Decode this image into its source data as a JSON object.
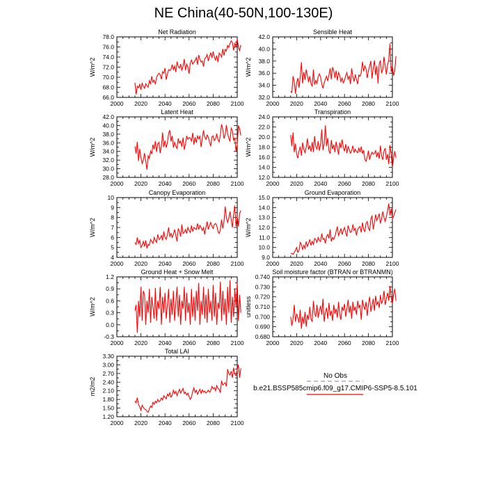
{
  "figure": {
    "title": "NE China(40-50N,100-130E)",
    "line_color": "#ff0000",
    "obs_color": "#9999cc"
  },
  "legend": {
    "obs_label": "No Obs",
    "model_label": "b.e21.BSSP585cmip6.f09_g17.CMIP6-SSP5-8.5.101"
  },
  "chart_data": [
    {
      "type": "line",
      "title": "Net Radiation",
      "ylabel": "W/m^2",
      "xlim": [
        2000,
        2100
      ],
      "ylim": [
        66.0,
        78.0
      ],
      "xticks": [
        2000,
        2020,
        2040,
        2060,
        2080,
        2100
      ],
      "yticks": [
        "66.0",
        "68.0",
        "70.0",
        "72.0",
        "74.0",
        "76.0",
        "78.0"
      ],
      "x_start": 2015,
      "values": [
        68.9,
        66.6,
        68.2,
        67.9,
        68.6,
        67.5,
        68.8,
        68.2,
        67.8,
        68.7,
        68.3,
        68.0,
        69.3,
        68.6,
        70.2,
        69.0,
        69.4,
        68.6,
        70.0,
        70.5,
        70.8,
        70.5,
        69.6,
        71.1,
        70.8,
        71.8,
        69.5,
        70.6,
        71.5,
        71.3,
        71.6,
        72.5,
        71.5,
        72.2,
        71.0,
        73.1,
        72.1,
        71.8,
        72.6,
        71.3,
        72.2,
        73.6,
        71.4,
        72.6,
        72.0,
        70.7,
        72.8,
        73.4,
        72.6,
        72.9,
        73.3,
        73.9,
        72.5,
        74.4,
        73.6,
        73.0,
        73.2,
        72.1,
        73.7,
        73.9,
        74.5,
        73.2,
        74.1,
        74.9,
        73.8,
        75.1,
        74.0,
        73.4,
        74.3,
        73.0,
        74.8,
        74.5,
        74.0,
        75.6,
        74.3,
        75.5,
        75.2,
        76.3,
        75.9,
        76.7,
        77.2,
        76.9,
        75.3,
        76.8,
        76.0,
        77.6,
        75.9,
        75.3,
        76.4
      ]
    },
    {
      "type": "line",
      "title": "Sensible Heat",
      "ylabel": "W/m^2",
      "xlim": [
        2000,
        2100
      ],
      "ylim": [
        32.0,
        42.0
      ],
      "xticks": [
        2000,
        2020,
        2040,
        2060,
        2080,
        2100
      ],
      "yticks": [
        "32.0",
        "34.0",
        "36.0",
        "38.0",
        "40.0",
        "42.0"
      ],
      "x_start": 2015,
      "values": [
        33.0,
        32.8,
        35.5,
        34.6,
        32.6,
        34.4,
        35.2,
        33.6,
        35.4,
        37.8,
        34.3,
        36.2,
        34.9,
        36.6,
        35.6,
        34.5,
        35.5,
        34.3,
        33.8,
        36.6,
        34.1,
        34.8,
        34.3,
        35.4,
        35.9,
        35.4,
        34.2,
        33.5,
        34.4,
        35.0,
        35.5,
        34.7,
        35.7,
        36.8,
        35.0,
        37.0,
        36.4,
        35.2,
        36.4,
        34.8,
        36.1,
        35.6,
        34.6,
        35.2,
        34.4,
        34.8,
        35.6,
        36.1,
        35.0,
        35.5,
        34.2,
        36.8,
        35.4,
        34.6,
        35.8,
        34.9,
        34.2,
        35.7,
        35.5,
        36.1,
        37.9,
        36.3,
        37.2,
        36.7,
        35.2,
        36.4,
        37.2,
        38.0,
        35.1,
        36.9,
        38.1,
        35.7,
        37.2,
        34.3,
        37.5,
        38.1,
        36.0,
        36.6,
        38.7,
        37.2,
        35.8,
        37.4,
        38.2,
        40.9,
        36.2,
        37.1,
        35.6,
        36.4,
        38.8
      ]
    },
    {
      "type": "line",
      "title": "Latent Heat",
      "ylabel": "W/m^2",
      "xlim": [
        2000,
        2100
      ],
      "ylim": [
        28.0,
        42.0
      ],
      "xticks": [
        2000,
        2020,
        2040,
        2060,
        2080,
        2100
      ],
      "yticks": [
        "28.0",
        "30.0",
        "32.0",
        "34.0",
        "36.0",
        "38.0",
        "40.0",
        "42.0"
      ],
      "x_start": 2015,
      "values": [
        35.2,
        33.5,
        36.2,
        31.8,
        34.6,
        32.5,
        31.2,
        32.0,
        33.6,
        31.8,
        29.8,
        33.0,
        32.4,
        34.1,
        33.4,
        35.6,
        34.5,
        36.4,
        33.9,
        35.8,
        36.1,
        33.6,
        35.2,
        38.4,
        35.0,
        36.5,
        34.9,
        36.0,
        38.2,
        38.9,
        36.3,
        37.6,
        34.9,
        36.1,
        35.2,
        34.7,
        37.0,
        35.9,
        36.4,
        35.1,
        37.2,
        34.4,
        35.7,
        37.6,
        36.8,
        37.2,
        37.1,
        36.4,
        38.3,
        35.6,
        37.3,
        36.0,
        37.6,
        36.9,
        37.5,
        35.0,
        37.1,
        38.9,
        37.3,
        36.8,
        37.8,
        37.3,
        36.1,
        35.2,
        37.4,
        37.6,
        36.5,
        36.9,
        38.1,
        36.7,
        36.2,
        37.9,
        40.3,
        39.1,
        37.0,
        37.8,
        40.1,
        38.2,
        37.1,
        36.3,
        39.4,
        38.8,
        36.5,
        37.2,
        33.9,
        35.6,
        40.0,
        39.2,
        37.7
      ]
    },
    {
      "type": "line",
      "title": "Transpiration",
      "ylabel": "W/m^2",
      "xlim": [
        2000,
        2100
      ],
      "ylim": [
        12.0,
        24.0
      ],
      "xticks": [
        2000,
        2020,
        2040,
        2060,
        2080,
        2100
      ],
      "yticks": [
        "12.0",
        "14.0",
        "16.0",
        "18.0",
        "20.0",
        "22.0",
        "24.0"
      ],
      "x_start": 2015,
      "values": [
        20.4,
        18.2,
        20.9,
        17.0,
        18.7,
        16.6,
        15.8,
        17.2,
        18.1,
        16.3,
        18.9,
        17.6,
        16.9,
        18.0,
        19.7,
        17.5,
        18.3,
        17.1,
        19.0,
        17.0,
        20.2,
        18.1,
        17.6,
        19.2,
        17.3,
        18.6,
        21.5,
        17.4,
        18.7,
        22.3,
        18.2,
        19.8,
        17.3,
        16.7,
        19.4,
        17.6,
        18.5,
        17.0,
        19.1,
        17.9,
        16.5,
        18.9,
        17.8,
        19.5,
        18.0,
        17.2,
        18.6,
        16.8,
        18.2,
        17.4,
        16.8,
        17.3,
        18.3,
        16.9,
        17.6,
        17.1,
        16.9,
        17.8,
        17.0,
        18.1,
        16.7,
        17.4,
        15.6,
        15.2,
        16.1,
        17.3,
        15.5,
        16.4,
        17.0,
        16.6,
        16.8,
        17.3,
        16.0,
        17.0,
        15.7,
        18.3,
        16.2,
        15.5,
        17.2,
        17.8,
        15.5,
        16.6,
        14.6,
        18.4,
        16.6,
        14.0,
        15.8,
        17.2,
        15.9
      ]
    },
    {
      "type": "line",
      "title": "Canopy Evaporation",
      "ylabel": "W/m^2",
      "xlim": [
        2000,
        2100
      ],
      "ylim": [
        4,
        10
      ],
      "xticks": [
        2000,
        2020,
        2040,
        2060,
        2080,
        2100
      ],
      "yticks": [
        "4",
        "5",
        "6",
        "7",
        "8",
        "9",
        "10"
      ],
      "x_start": 2015,
      "values": [
        5.5,
        5.3,
        6.0,
        5.4,
        5.7,
        5.0,
        5.2,
        5.6,
        5.1,
        5.7,
        4.9,
        5.3,
        5.2,
        5.8,
        5.6,
        5.4,
        6.0,
        5.7,
        5.5,
        6.3,
        5.8,
        5.9,
        6.2,
        5.7,
        6.6,
        6.0,
        5.8,
        6.3,
        7.0,
        6.1,
        6.4,
        6.0,
        6.3,
        6.8,
        6.2,
        5.6,
        6.9,
        6.6,
        6.1,
        7.3,
        6.4,
        6.5,
        6.8,
        6.4,
        7.0,
        6.7,
        6.5,
        7.2,
        6.6,
        7.0,
        6.9,
        6.8,
        7.4,
        6.8,
        7.2,
        7.0,
        6.7,
        7.0,
        6.3,
        7.0,
        7.6,
        6.8,
        7.2,
        7.5,
        7.1,
        6.9,
        7.3,
        7.4,
        7.2,
        6.6,
        6.4,
        6.8,
        7.8,
        6.9,
        7.6,
        9.1,
        8.0,
        7.5,
        7.9,
        8.6,
        7.8,
        7.0,
        8.3,
        9.2,
        7.1,
        8.1,
        7.1,
        8.4,
        8.7
      ]
    },
    {
      "type": "line",
      "title": "Ground Evaporation",
      "ylabel": "W/m^2",
      "xlim": [
        2000,
        2100
      ],
      "ylim": [
        9.0,
        15.0
      ],
      "xticks": [
        2000,
        2020,
        2040,
        2060,
        2080,
        2100
      ],
      "yticks": [
        "9.0",
        "10.0",
        "11.0",
        "12.0",
        "13.0",
        "14.0",
        "15.0"
      ],
      "x_start": 2015,
      "values": [
        9.4,
        9.4,
        9.3,
        9.5,
        9.7,
        10.0,
        9.5,
        9.7,
        10.5,
        10.3,
        9.8,
        10.2,
        9.9,
        10.6,
        10.1,
        10.4,
        10.8,
        10.2,
        10.6,
        10.3,
        10.9,
        10.8,
        10.5,
        11.0,
        10.7,
        10.6,
        11.4,
        10.8,
        10.9,
        10.4,
        11.1,
        11.3,
        10.9,
        11.8,
        10.6,
        11.0,
        10.8,
        11.1,
        11.6,
        12.1,
        11.2,
        11.5,
        11.9,
        11.3,
        11.7,
        12.0,
        11.5,
        11.1,
        12.2,
        11.8,
        11.5,
        11.6,
        12.3,
        11.7,
        11.9,
        11.2,
        11.8,
        12.0,
        12.1,
        11.5,
        12.5,
        11.8,
        11.6,
        12.4,
        12.6,
        11.9,
        11.7,
        12.8,
        13.2,
        11.8,
        12.5,
        13.3,
        12.7,
        13.0,
        13.4,
        12.4,
        12.9,
        13.6,
        13.0,
        12.6,
        13.1,
        13.7,
        14.4,
        13.2,
        13.9,
        12.9,
        13.1,
        13.5,
        13.8
      ]
    },
    {
      "type": "line",
      "title": "Ground Heat + Snow Melt",
      "ylabel": "W/m^2",
      "xlim": [
        2000,
        2100
      ],
      "ylim": [
        -0.3,
        1.2
      ],
      "xticks": [
        2000,
        2020,
        2040,
        2060,
        2080,
        2100
      ],
      "yticks": [
        "-0.3",
        "0.0",
        "0.3",
        "0.6",
        "0.9",
        "1.2"
      ],
      "x_start": 2015,
      "values": [
        0.35,
        0.5,
        -0.2,
        0.6,
        0.2,
        0.95,
        0.1,
        0.85,
        0.75,
        0.0,
        0.6,
        0.3,
        0.9,
        0.05,
        0.7,
        0.45,
        0.15,
        0.92,
        0.1,
        0.6,
        0.4,
        0.95,
        0.0,
        0.7,
        0.3,
        0.8,
        0.15,
        0.5,
        0.9,
        0.05,
        0.65,
        0.25,
        0.85,
        0.1,
        0.55,
        0.95,
        0.2,
        0.75,
        0.0,
        0.6,
        0.4,
        0.95,
        0.1,
        0.8,
        0.3,
        0.55,
        0.0,
        0.9,
        0.2,
        0.7,
        0.1,
        0.85,
        0.35,
        1.05,
        0.0,
        0.6,
        0.25,
        0.95,
        0.15,
        0.75,
        0.05,
        0.9,
        0.3,
        0.6,
        0.1,
        1.0,
        0.2,
        0.8,
        0.0,
        0.55,
        0.4,
        1.08,
        0.1,
        0.85,
        0.25,
        0.65,
        0.0,
        0.95,
        0.3,
        1.12,
        0.05,
        0.7,
        0.2,
        0.9,
        0.45,
        1.05,
        0.1,
        0.75,
        0.3
      ]
    },
    {
      "type": "line",
      "title": "Soil moisture factor (BTRAN or BTRANMN)",
      "ylabel": "unitless",
      "xlim": [
        2000,
        2100
      ],
      "ylim": [
        0.68,
        0.74
      ],
      "xticks": [
        2000,
        2020,
        2040,
        2060,
        2080,
        2100
      ],
      "yticks": [
        "0.680",
        "0.690",
        "0.700",
        "0.710",
        "0.720",
        "0.730",
        "0.740"
      ],
      "x_start": 2015,
      "values": [
        0.7,
        0.691,
        0.698,
        0.712,
        0.695,
        0.703,
        0.699,
        0.694,
        0.707,
        0.688,
        0.7,
        0.693,
        0.705,
        0.69,
        0.702,
        0.697,
        0.71,
        0.698,
        0.695,
        0.716,
        0.703,
        0.7,
        0.712,
        0.699,
        0.706,
        0.711,
        0.702,
        0.718,
        0.695,
        0.704,
        0.709,
        0.698,
        0.714,
        0.701,
        0.706,
        0.696,
        0.712,
        0.703,
        0.708,
        0.699,
        0.715,
        0.702,
        0.697,
        0.71,
        0.706,
        0.713,
        0.7,
        0.708,
        0.717,
        0.704,
        0.711,
        0.698,
        0.715,
        0.706,
        0.71,
        0.702,
        0.716,
        0.709,
        0.712,
        0.697,
        0.717,
        0.711,
        0.707,
        0.715,
        0.701,
        0.713,
        0.72,
        0.705,
        0.711,
        0.718,
        0.706,
        0.721,
        0.712,
        0.715,
        0.709,
        0.722,
        0.713,
        0.717,
        0.726,
        0.712,
        0.718,
        0.724,
        0.716,
        0.731,
        0.719,
        0.713,
        0.722,
        0.728,
        0.716
      ]
    },
    {
      "type": "line",
      "title": "Total LAI",
      "ylabel": "m2/m2",
      "xlim": [
        2000,
        2100
      ],
      "ylim": [
        1.2,
        3.3
      ],
      "xticks": [
        2000,
        2020,
        2040,
        2060,
        2080,
        2100
      ],
      "yticks": [
        "1.20",
        "1.50",
        "1.80",
        "2.10",
        "2.40",
        "2.70",
        "3.00",
        "3.30"
      ],
      "x_start": 2015,
      "values": [
        1.75,
        1.68,
        1.86,
        1.62,
        1.55,
        1.42,
        1.6,
        1.52,
        1.47,
        1.45,
        1.38,
        1.35,
        1.48,
        1.57,
        1.52,
        1.7,
        1.63,
        1.74,
        1.68,
        1.8,
        1.72,
        1.76,
        1.85,
        1.78,
        1.93,
        1.87,
        1.82,
        1.98,
        1.92,
        2.03,
        1.88,
        1.95,
        2.12,
        2.0,
        2.08,
        1.93,
        2.05,
        2.15,
        2.02,
        2.1,
        2.18,
        2.0,
        2.05,
        1.95,
        2.02,
        1.9,
        1.8,
        1.88,
        2.08,
        2.2,
        2.04,
        2.12,
        1.98,
        2.07,
        2.15,
        2.01,
        2.13,
        2.05,
        2.09,
        2.02,
        2.06,
        2.12,
        2.05,
        2.1,
        2.25,
        2.17,
        2.21,
        2.1,
        2.28,
        2.18,
        2.15,
        2.03,
        2.45,
        2.3,
        2.34,
        2.38,
        2.25,
        2.85,
        2.7,
        2.65,
        2.78,
        2.55,
        2.9,
        2.68,
        2.62,
        2.84,
        3.0,
        2.55,
        2.88
      ]
    }
  ]
}
